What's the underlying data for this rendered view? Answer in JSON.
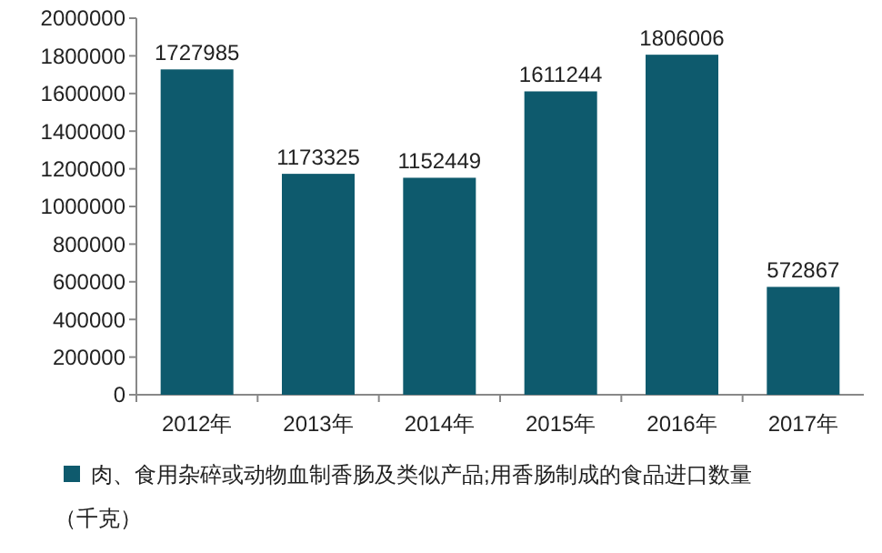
{
  "chart_data": {
    "type": "bar",
    "categories": [
      "2012年",
      "2013年",
      "2014年",
      "2015年",
      "2016年",
      "2017年"
    ],
    "series": [
      {
        "name": "肉、食用杂碎或动物血制香肠及类似产品;用香肠制成的食品进口数量（千克）",
        "color": "#0e5a6d",
        "values": [
          1727985,
          1173325,
          1152449,
          1611244,
          1806006,
          572867
        ]
      }
    ],
    "ylim": [
      0,
      2000000
    ],
    "yticks": [
      0,
      200000,
      400000,
      600000,
      800000,
      1000000,
      1200000,
      1400000,
      1600000,
      1800000,
      2000000
    ],
    "data_labels": true,
    "legend": "bottom",
    "grid": false
  }
}
